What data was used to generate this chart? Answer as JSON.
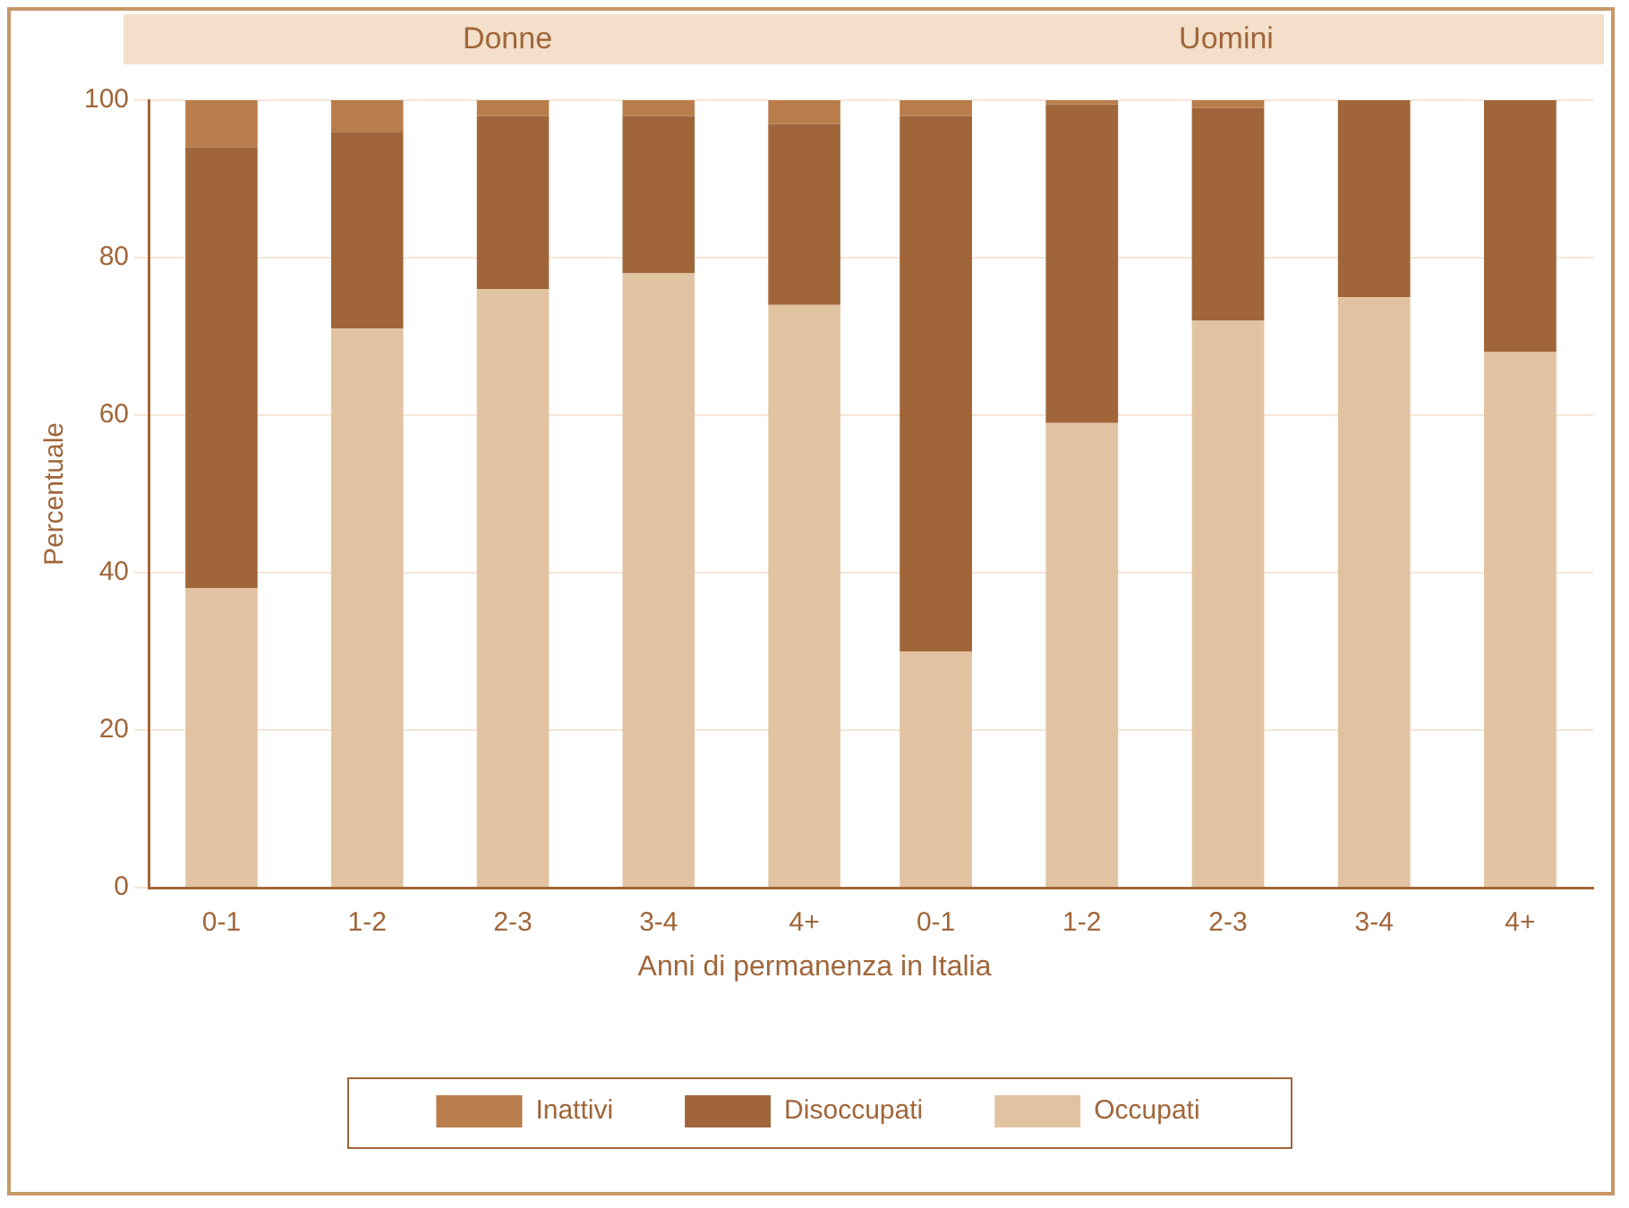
{
  "chart_data": [
    {
      "type": "bar",
      "title": "Donne",
      "ylabel": "Percentuale",
      "xlabel": "Anni di permanenza in Italia",
      "categories": [
        "0-1",
        "1-2",
        "2-3",
        "3-4",
        "4+"
      ],
      "stacked": true,
      "ylim": [
        0,
        100
      ],
      "yticks": [
        0,
        20,
        40,
        60,
        80,
        100
      ],
      "grid": "y",
      "legend": "bottom",
      "series": [
        {
          "name": "Occupati",
          "color": "#e2c3a1",
          "values": [
            38,
            71,
            76,
            78,
            74
          ]
        },
        {
          "name": "Disoccupati",
          "color": "#a0663a",
          "values": [
            56,
            25,
            22,
            20,
            23
          ]
        },
        {
          "name": "Inattivi",
          "color": "#b97d4b",
          "values": [
            6,
            4,
            2,
            2,
            3
          ]
        }
      ]
    },
    {
      "type": "bar",
      "title": "Uomini",
      "categories": [
        "0-1",
        "1-2",
        "2-3",
        "3-4",
        "4+"
      ],
      "stacked": true,
      "ylim": [
        0,
        100
      ],
      "yticks": [
        0,
        20,
        40,
        60,
        80,
        100
      ],
      "grid": "y",
      "tick_labels": "x",
      "series": [
        {
          "color": "#e2c3a1",
          "values": [
            30,
            59,
            72,
            75,
            68
          ]
        },
        {
          "color": "#a0663a",
          "values": [
            68,
            40.5,
            27,
            25,
            32
          ]
        },
        {
          "color": "#b97d4b",
          "values": [
            2,
            0.5,
            1,
            0,
            0
          ]
        }
      ]
    }
  ]
}
